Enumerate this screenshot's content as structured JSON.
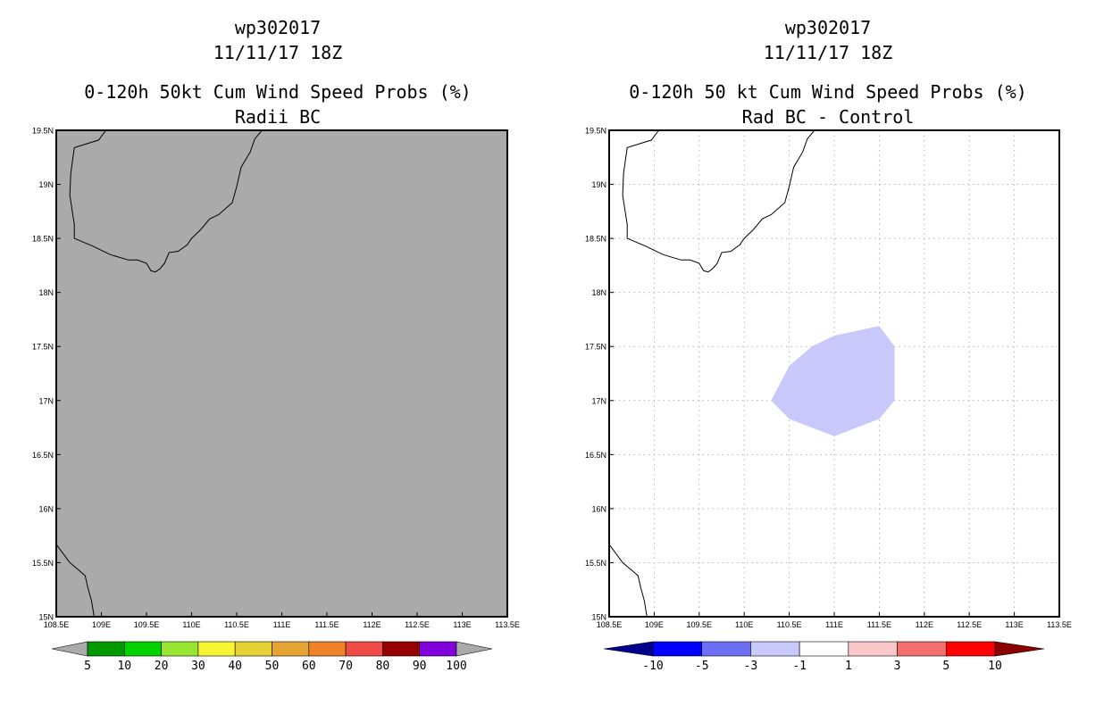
{
  "chart_data": [
    {
      "type": "map",
      "title_lines": [
        "wp302017",
        "11/11/17 18Z",
        "0-120h 50kt Cum Wind Speed Probs (%)",
        "Radii BC"
      ],
      "xlim": [
        108.5,
        113.5
      ],
      "ylim": [
        15,
        19.5
      ],
      "xticks": [
        108.5,
        109,
        109.5,
        110,
        110.5,
        111,
        111.5,
        112,
        112.5,
        113,
        113.5
      ],
      "xtick_labels": [
        "108.5E",
        "109E",
        "109.5E",
        "110E",
        "110.5E",
        "111E",
        "111.5E",
        "112E",
        "112.5E",
        "113E",
        "113.5E"
      ],
      "yticks": [
        15,
        15.5,
        16,
        16.5,
        17,
        17.5,
        18,
        18.5,
        19,
        19.5
      ],
      "ytick_labels": [
        "15N",
        "15.5N",
        "16N",
        "16.5N",
        "17N",
        "17.5N",
        "18N",
        "18.5N",
        "19N",
        "19.5N"
      ],
      "grid": false,
      "background": "#aaaaaa",
      "colorbar": {
        "labels": [
          "5",
          "10",
          "20",
          "30",
          "40",
          "50",
          "60",
          "70",
          "80",
          "90",
          "100"
        ],
        "colors": [
          "#009a00",
          "#00d200",
          "#96e632",
          "#f5f532",
          "#e6d232",
          "#e6a532",
          "#f08228",
          "#f04b46",
          "#960000",
          "#8200dc"
        ],
        "end_low": "#aaaaaa",
        "end_high": "#aaaaaa"
      }
    },
    {
      "type": "map",
      "title_lines": [
        "wp302017",
        "11/11/17 18Z",
        "0-120h 50 kt Cum Wind Speed Probs (%)",
        "Rad BC - Control"
      ],
      "xlim": [
        108.5,
        113.5
      ],
      "ylim": [
        15,
        19.5
      ],
      "xticks": [
        108.5,
        109,
        109.5,
        110,
        110.5,
        111,
        111.5,
        112,
        112.5,
        113,
        113.5
      ],
      "xtick_labels": [
        "108.5E",
        "109E",
        "109.5E",
        "110E",
        "110.5E",
        "111E",
        "111.5E",
        "112E",
        "112.5E",
        "113E",
        "113.5E"
      ],
      "yticks": [
        15,
        15.5,
        16,
        16.5,
        17,
        17.5,
        18,
        18.5,
        19,
        19.5
      ],
      "ytick_labels": [
        "15N",
        "15.5N",
        "16N",
        "16.5N",
        "17N",
        "17.5N",
        "18N",
        "18.5N",
        "19N",
        "19.5N"
      ],
      "grid": true,
      "background": "#ffffff",
      "shaded_region": {
        "value_range": "-3 to -1",
        "color": "#c8c8fa",
        "lonlat": [
          [
            110.3,
            17.0
          ],
          [
            110.5,
            17.32
          ],
          [
            110.75,
            17.5
          ],
          [
            111.0,
            17.6
          ],
          [
            111.5,
            17.69
          ],
          [
            111.67,
            17.5
          ],
          [
            111.67,
            17.0
          ],
          [
            111.5,
            16.83
          ],
          [
            111.0,
            16.67
          ],
          [
            110.5,
            16.83
          ]
        ]
      },
      "colorbar": {
        "labels": [
          "-10",
          "-5",
          "-3",
          "-1",
          "1",
          "3",
          "5",
          "10"
        ],
        "colors": [
          "#0000ff",
          "#6e6ef5",
          "#c8c8fa",
          "#ffffff",
          "#fac8c8",
          "#f56e6e",
          "#ff0000"
        ],
        "end_low": "#00008c",
        "end_high": "#8c0000"
      }
    }
  ],
  "coastlines": [
    {
      "name": "hainan",
      "points": [
        [
          109.05,
          19.5
        ],
        [
          108.97,
          19.41
        ],
        [
          108.7,
          19.34
        ],
        [
          108.66,
          19.1
        ],
        [
          108.65,
          18.9
        ],
        [
          108.7,
          18.63
        ],
        [
          108.7,
          18.5
        ],
        [
          108.9,
          18.43
        ],
        [
          109.1,
          18.35
        ],
        [
          109.3,
          18.3
        ],
        [
          109.4,
          18.3
        ],
        [
          109.5,
          18.27
        ],
        [
          109.55,
          18.2
        ],
        [
          109.6,
          18.19
        ],
        [
          109.65,
          18.22
        ],
        [
          109.7,
          18.27
        ],
        [
          109.75,
          18.37
        ],
        [
          109.85,
          18.38
        ],
        [
          109.95,
          18.44
        ],
        [
          110.0,
          18.5
        ],
        [
          110.1,
          18.58
        ],
        [
          110.2,
          18.68
        ],
        [
          110.3,
          18.72
        ],
        [
          110.45,
          18.83
        ],
        [
          110.5,
          18.98
        ],
        [
          110.55,
          19.16
        ],
        [
          110.6,
          19.23
        ],
        [
          110.65,
          19.3
        ],
        [
          110.7,
          19.42
        ],
        [
          110.78,
          19.5
        ]
      ]
    },
    {
      "name": "vietnam",
      "points": [
        [
          108.5,
          15.67
        ],
        [
          108.65,
          15.5
        ],
        [
          108.75,
          15.43
        ],
        [
          108.82,
          15.38
        ],
        [
          108.85,
          15.27
        ],
        [
          108.89,
          15.15
        ],
        [
          108.92,
          15.0
        ]
      ]
    }
  ]
}
